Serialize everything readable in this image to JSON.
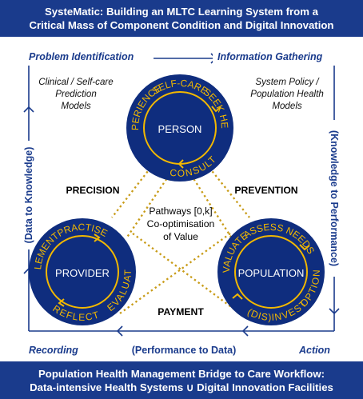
{
  "header": {
    "line1": "SysteMatic: Building  an MLTC Learning System from a",
    "line2": "Critical Mass of Component Condition and Digital Innovation"
  },
  "footer": {
    "line1": "Population Health Management Bridge to Care Workflow:",
    "line2": "Data-intensive Health Systems ∪ Digital Innovation Facilities"
  },
  "stages": {
    "top_left": "Problem Identification",
    "top_right": "Information Gathering",
    "bottom_left": "Recording",
    "bottom_middle": "(Performance to Data)",
    "bottom_right": "Action",
    "left_side": "(Data to Knowledge)",
    "right_side": "(Knowledge to Performance)"
  },
  "models": {
    "left": [
      "Clinical / Self-care",
      "Prediction",
      "Models"
    ],
    "right": [
      "System Policy /",
      "Population Health",
      "Models"
    ]
  },
  "links": {
    "precision": "PRECISION",
    "prevention": "PREVENTION",
    "payment": "PAYMENT"
  },
  "center": [
    "Pathways [0,k]",
    "Co-optimisation",
    "of Value"
  ],
  "circles": {
    "person": {
      "title": "PERSON",
      "ring": [
        "SELF-CARE",
        "SEEK HELP",
        "CONSULT",
        "EXPERIENCE"
      ]
    },
    "provider": {
      "title": "PROVIDER",
      "ring": [
        "PRACTISE",
        "EVALUATE",
        "REFLECT",
        "IMPLEMENT"
      ]
    },
    "population": {
      "title": "POPULATION",
      "ring": [
        "ASSESS NEEDS",
        "OPTIONS",
        "(DIS)INVEST",
        "EVALUATE"
      ]
    }
  },
  "colors": {
    "navy": "#1a3b8c",
    "circle_fill": "#0f2d7e",
    "gold": "#f2b800",
    "dotted": "#c89b16"
  }
}
